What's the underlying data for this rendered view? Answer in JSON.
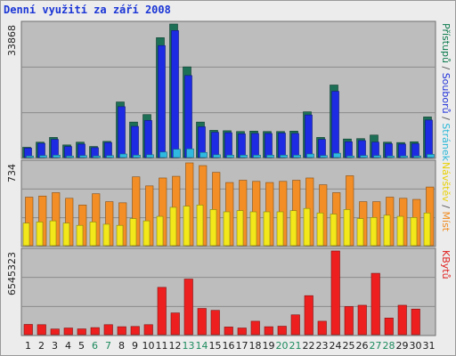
{
  "chart_data": {
    "type": "bar",
    "title": "Denní využití za září 2008",
    "categories": [
      "1",
      "2",
      "3",
      "4",
      "5",
      "6",
      "7",
      "8",
      "9",
      "10",
      "11",
      "12",
      "13",
      "14",
      "15",
      "16",
      "17",
      "18",
      "19",
      "20",
      "21",
      "22",
      "23",
      "24",
      "25",
      "26",
      "27",
      "28",
      "29",
      "30",
      "31"
    ],
    "weekend_days": [
      "6",
      "7",
      "13",
      "14",
      "20",
      "21",
      "27",
      "28"
    ],
    "panels": [
      {
        "ylabel_max": "33868",
        "ylim": [
          0,
          33868
        ],
        "series_label": "Přístupů / Souborů / Stránek",
        "legend_parts": [
          {
            "text": "Přístupů",
            "color": "#0b7a4d"
          },
          {
            "text": " / ",
            "color": "#555555"
          },
          {
            "text": "Souborů",
            "color": "#1f2fd8"
          },
          {
            "text": " / ",
            "color": "#555555"
          },
          {
            "text": "Stránek",
            "color": "#2bb8d8"
          }
        ],
        "series": [
          {
            "name": "Přístupů",
            "color": "#1d6f55",
            "values": [
              2600,
              3900,
              5100,
              3200,
              3900,
              2800,
              4100,
              14100,
              9000,
              10900,
              30400,
              33868,
              23000,
              9000,
              6900,
              6800,
              6600,
              6700,
              6600,
              6600,
              6700,
              11600,
              5100,
              18400,
              4700,
              4800,
              5700,
              3900,
              3800,
              4000,
              10300
            ]
          },
          {
            "name": "Souborů",
            "color": "#1d2ce3",
            "values": [
              2400,
              3600,
              4600,
              2800,
              3400,
              2500,
              3800,
              12900,
              7900,
              9400,
              28400,
              32200,
              20800,
              7800,
              6400,
              6300,
              6000,
              6100,
              6100,
              6200,
              6100,
              10800,
              4600,
              16800,
              4000,
              4300,
              3900,
              3500,
              3400,
              3500,
              9500
            ]
          },
          {
            "name": "Stránek",
            "color": "#2fb9e0",
            "values": [
              400,
              500,
              600,
              400,
              500,
              400,
              500,
              900,
              600,
              700,
              1400,
              2100,
              2200,
              1300,
              700,
              600,
              600,
              600,
              600,
              600,
              600,
              900,
              500,
              1100,
              400,
              500,
              500,
              400,
              400,
              400,
              800
            ]
          }
        ]
      },
      {
        "ylabel_max": "734",
        "ylim": [
          0,
          734
        ],
        "series_label": "Návštěv / Míst",
        "legend_parts": [
          {
            "text": "Návštěv",
            "color": "#e8d000"
          },
          {
            "text": " / ",
            "color": "#555555"
          },
          {
            "text": "Míst",
            "color": "#f08a1e"
          }
        ],
        "series": [
          {
            "name": "Míst",
            "color": "#f38e26",
            "values": [
              430,
              440,
              470,
              420,
              360,
              460,
              390,
              380,
              610,
              530,
              600,
              615,
              734,
              710,
              650,
              560,
              580,
              570,
              560,
              570,
              580,
              600,
              540,
              470,
              620,
              390,
              390,
              430,
              420,
              410,
              520
            ]
          },
          {
            "name": "Návštěv",
            "color": "#f2e81a",
            "values": [
              200,
              210,
              220,
              200,
              180,
              210,
              190,
              180,
              240,
              220,
              260,
              340,
              350,
              360,
              320,
              300,
              310,
              300,
              300,
              300,
              310,
              330,
              290,
              280,
              320,
              240,
              250,
              270,
              260,
              250,
              290
            ]
          }
        ]
      },
      {
        "ylabel_max": "6545323",
        "ylim": [
          0,
          6545323
        ],
        "series_label": "KBytů",
        "legend_parts": [
          {
            "text": "KBytů",
            "color": "#e01a1a"
          }
        ],
        "series": [
          {
            "name": "KBytů",
            "color": "#ee1f1f",
            "values": [
              800000,
              780000,
              440000,
              520000,
              450000,
              550000,
              780000,
              620000,
              640000,
              780000,
              3700000,
              1700000,
              4350000,
              2050000,
              1900000,
              600000,
              520000,
              1050000,
              620000,
              660000,
              1550000,
              3050000,
              1050000,
              6545323,
              2200000,
              2300000,
              4800000,
              1300000,
              2300000,
              2000000,
              0
            ]
          }
        ]
      }
    ]
  }
}
